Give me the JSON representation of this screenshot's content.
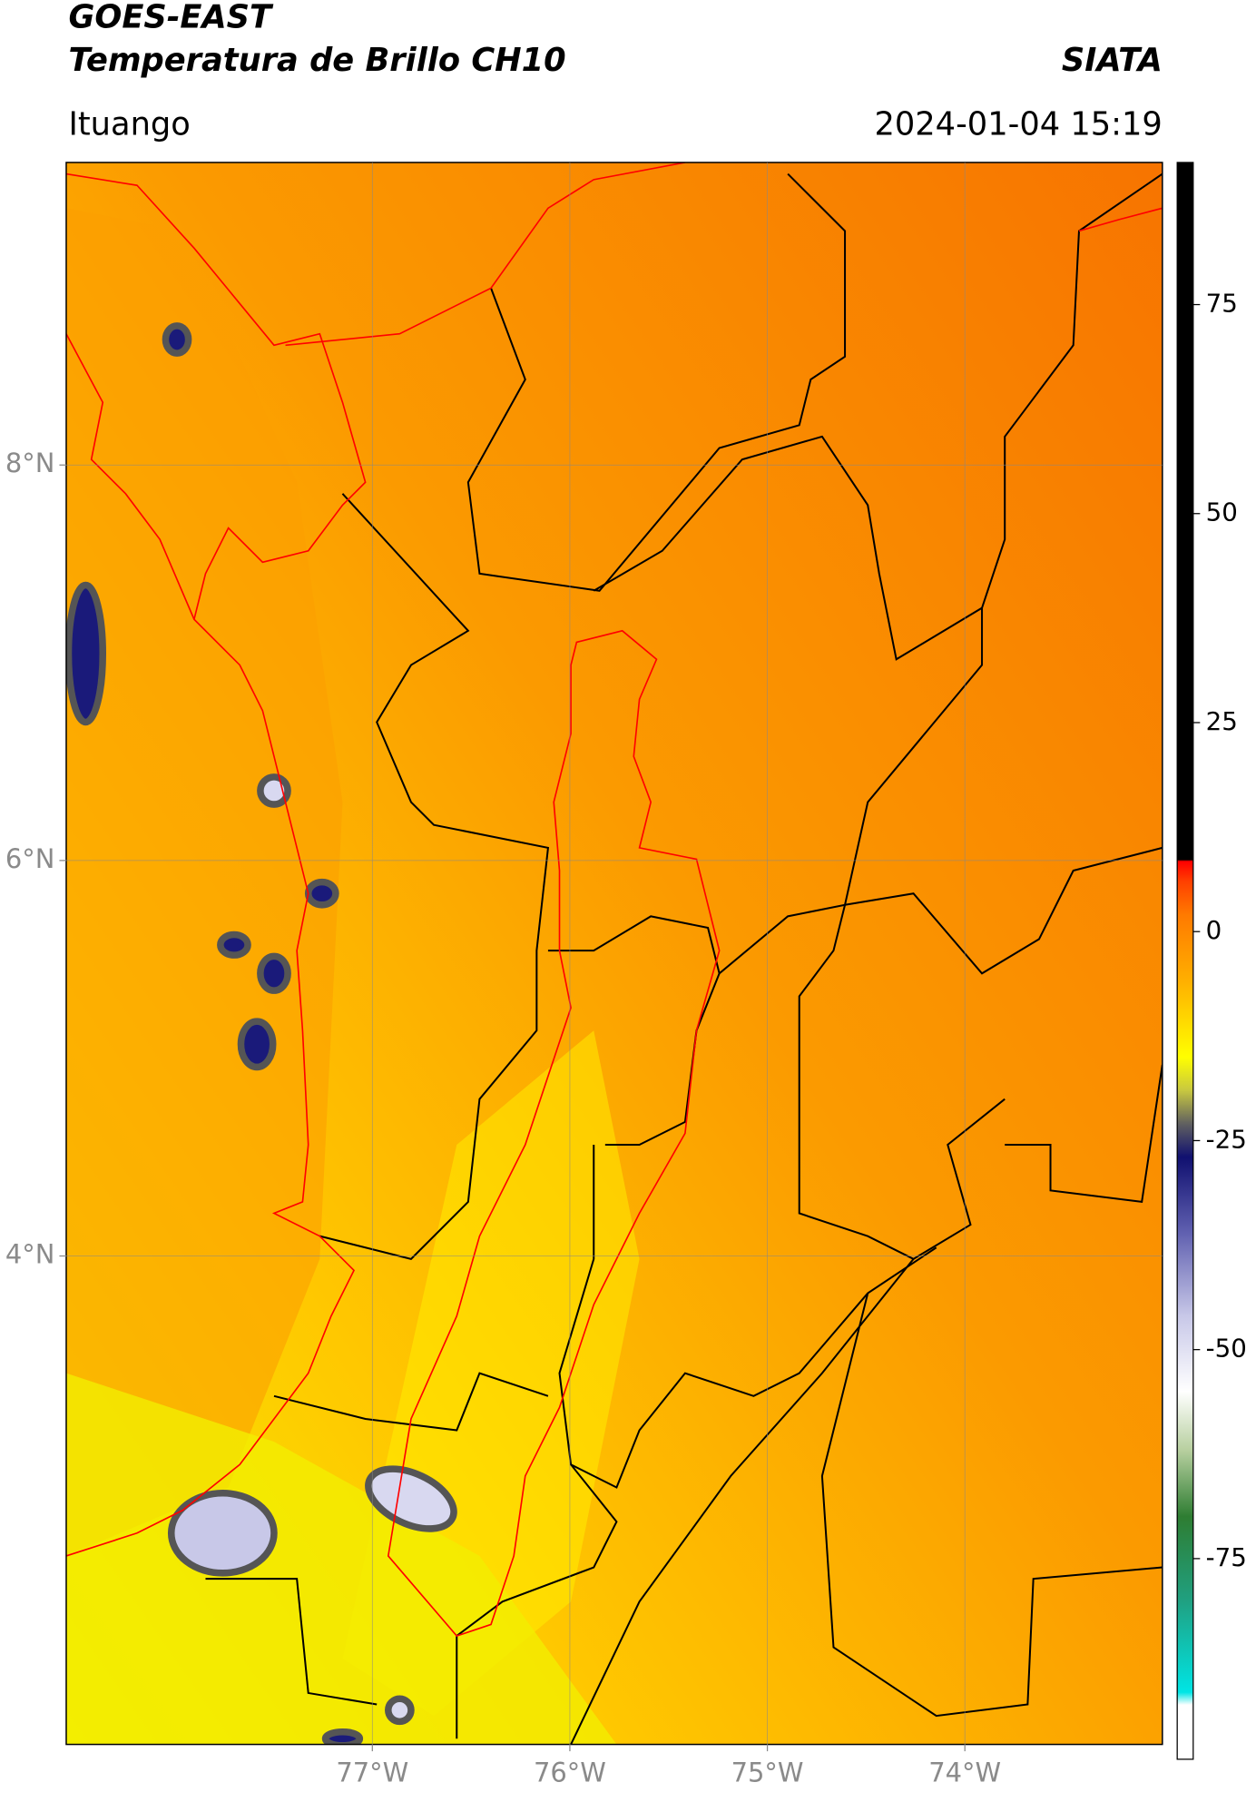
{
  "chart_data": {
    "type": "map",
    "title": "GOES-EAST",
    "subtitle": "Temperatura de Brillo CH10",
    "source": "SIATA",
    "location": "Ituango",
    "datetime": "2024-01-04 15:19",
    "xlim": [
      -78.55,
      -73.0
    ],
    "ylim": [
      1.53,
      9.53
    ],
    "xticks": [
      {
        "value": -77,
        "label": "77°W"
      },
      {
        "value": -76,
        "label": "76°W"
      },
      {
        "value": -75,
        "label": "75°W"
      },
      {
        "value": -74,
        "label": "74°W"
      }
    ],
    "yticks": [
      {
        "value": 8,
        "label": "8°N"
      },
      {
        "value": 6,
        "label": "6°N"
      },
      {
        "value": 4,
        "label": "4°N"
      }
    ],
    "colorbar": {
      "lim": [
        -99,
        92
      ],
      "ticks": [
        75,
        50,
        25,
        0,
        -25,
        -50,
        -75
      ],
      "colormap": [
        {
          "value": 92,
          "color": "#000000"
        },
        {
          "value": 8.6,
          "color": "#000000"
        },
        {
          "value": 8.4,
          "color": "#ff0000"
        },
        {
          "value": 6,
          "color": "#ff4000"
        },
        {
          "value": 2,
          "color": "#ff7a00"
        },
        {
          "value": -6,
          "color": "#ffb000"
        },
        {
          "value": -15,
          "color": "#ffff00"
        },
        {
          "value": -19,
          "color": "#c8c840"
        },
        {
          "value": -23,
          "color": "#606060"
        },
        {
          "value": -27,
          "color": "#101070"
        },
        {
          "value": -36,
          "color": "#6060b0"
        },
        {
          "value": -46,
          "color": "#c8c8e8"
        },
        {
          "value": -55,
          "color": "#ffffff"
        },
        {
          "value": -62,
          "color": "#b8d0a0"
        },
        {
          "value": -70,
          "color": "#2e7d32"
        },
        {
          "value": -80,
          "color": "#20a080"
        },
        {
          "value": -91,
          "color": "#00e5e5"
        },
        {
          "value": -92.5,
          "color": "#ffffff"
        },
        {
          "value": -99,
          "color": "#ffffff"
        }
      ]
    },
    "grid": true
  }
}
